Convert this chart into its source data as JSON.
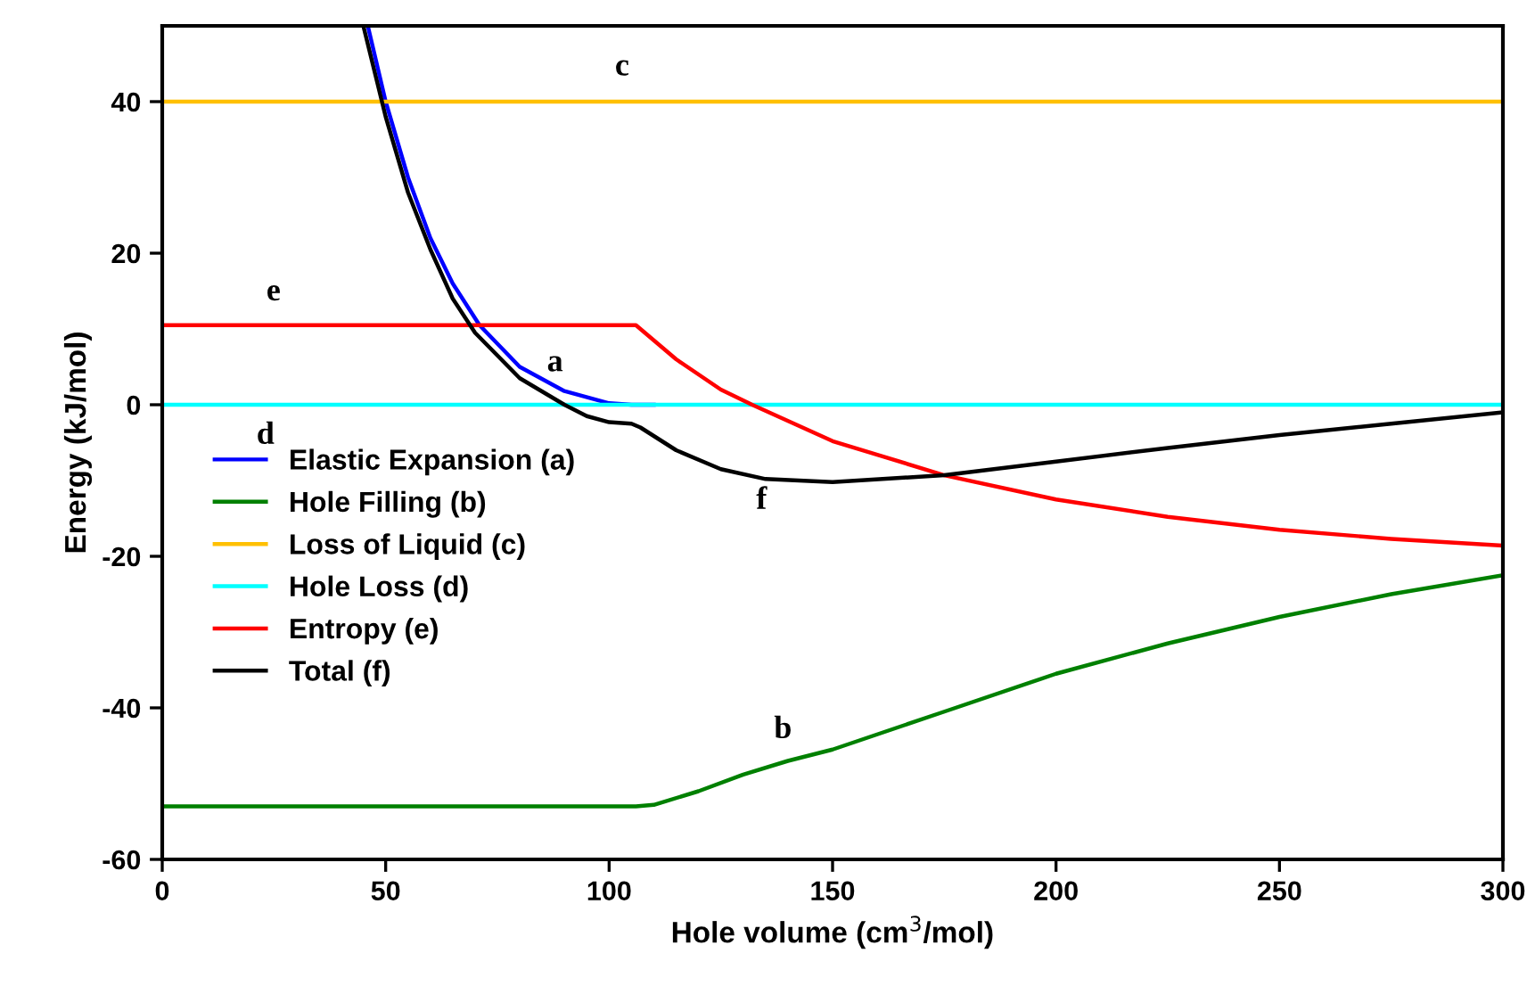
{
  "chart_data": {
    "type": "line",
    "xlabel": "Hole volume (cm$^{3}$/mol)",
    "ylabel": "Energy (kJ/mol)",
    "xlim": [
      0,
      300
    ],
    "ylim": [
      -60,
      50
    ],
    "xticks": [
      0,
      50,
      100,
      150,
      200,
      250,
      300
    ],
    "yticks": [
      -60,
      -40,
      -20,
      0,
      20,
      40
    ],
    "grid": false,
    "legend": "left",
    "marker": "none",
    "line_style": "solid",
    "series": [
      {
        "name": "Elastic Expansion (a)",
        "color": "#0000ff",
        "x": [
          46,
          50,
          55,
          60,
          65,
          71,
          80,
          90,
          100,
          105,
          110
        ],
        "values": [
          50,
          40,
          30,
          22,
          16,
          10.5,
          5,
          1.8,
          0.2,
          0,
          0
        ]
      },
      {
        "name": "Hole Filling (b)",
        "color": "#008000",
        "x": [
          0,
          106,
          110,
          120,
          130,
          140,
          150,
          175,
          200,
          225,
          250,
          275,
          300
        ],
        "values": [
          -53,
          -53,
          -52.8,
          -51,
          -48.8,
          -47,
          -45.5,
          -40.5,
          -35.5,
          -31.5,
          -28,
          -25,
          -22.5
        ]
      },
      {
        "name": "Loss of Liquid (c)",
        "color": "#ffc000",
        "x": [
          0,
          300
        ],
        "values": [
          40,
          40
        ]
      },
      {
        "name": "Hole Loss (d)",
        "color": "#00ffff",
        "x": [
          0,
          300
        ],
        "values": [
          0,
          0
        ]
      },
      {
        "name": "Entropy (e)",
        "color": "#ff0000",
        "x": [
          0,
          106,
          115,
          125,
          132,
          150,
          175,
          200,
          225,
          250,
          275,
          300
        ],
        "values": [
          10.5,
          10.5,
          6,
          2,
          0,
          -4.8,
          -9.3,
          -12.5,
          -14.8,
          -16.5,
          -17.7,
          -18.6
        ]
      },
      {
        "name": "Total (f)",
        "color": "#000000",
        "x": [
          45,
          50,
          55,
          60,
          65,
          70,
          80,
          90,
          95,
          100,
          105,
          107,
          115,
          125,
          135,
          150,
          175,
          200,
          225,
          250,
          275,
          300
        ],
        "values": [
          50,
          38,
          28,
          20.5,
          14,
          9.5,
          3.5,
          0,
          -1.5,
          -2.3,
          -2.5,
          -3,
          -6,
          -8.5,
          -9.8,
          -10.2,
          -9.3,
          -7.5,
          -5.7,
          -4,
          -2.5,
          -1
        ]
      }
    ],
    "annotations": [
      "a",
      "b",
      "c",
      "d",
      "e",
      "f"
    ]
  }
}
